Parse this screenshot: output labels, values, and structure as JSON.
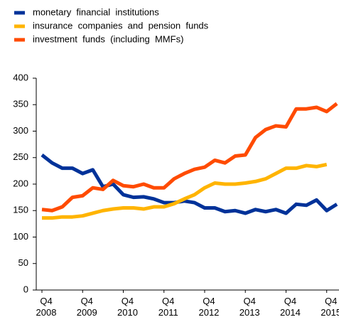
{
  "chart_data": {
    "type": "line",
    "categories": [
      "Q4 2008",
      null,
      null,
      null,
      "Q4 2009",
      null,
      null,
      null,
      "Q4 2010",
      null,
      null,
      null,
      "Q4 2011",
      null,
      null,
      null,
      "Q4 2012",
      null,
      null,
      null,
      "Q4 2013",
      null,
      null,
      null,
      "Q4 2014",
      null,
      null,
      null,
      "Q4 2015",
      null
    ],
    "series": [
      {
        "name": "monetary  financial  institutions",
        "color": "#003299",
        "values": [
          255,
          240,
          230,
          230,
          220,
          227,
          195,
          200,
          180,
          175,
          176,
          172,
          165,
          165,
          168,
          165,
          155,
          155,
          148,
          150,
          145,
          152,
          148,
          152,
          145,
          162,
          160,
          170,
          150,
          162
        ]
      },
      {
        "name": "insurance  companies  and  pension  funds",
        "color": "#ffb400",
        "values": [
          136,
          136,
          138,
          138,
          140,
          145,
          150,
          153,
          155,
          155,
          153,
          157,
          157,
          163,
          172,
          180,
          193,
          202,
          200,
          200,
          202,
          205,
          210,
          220,
          230,
          230,
          235,
          233,
          237,
          null
        ]
      },
      {
        "name": "investment  funds  (including  MMFs)",
        "color": "#ff4b00",
        "values": [
          152,
          150,
          157,
          175,
          178,
          193,
          190,
          207,
          197,
          195,
          200,
          193,
          193,
          210,
          220,
          228,
          232,
          245,
          240,
          253,
          255,
          288,
          303,
          310,
          308,
          342,
          342,
          345,
          337,
          352
        ]
      }
    ],
    "ylim": [
      0,
      400
    ],
    "yticks": [
      0,
      50,
      100,
      150,
      200,
      250,
      300,
      350,
      400
    ]
  }
}
